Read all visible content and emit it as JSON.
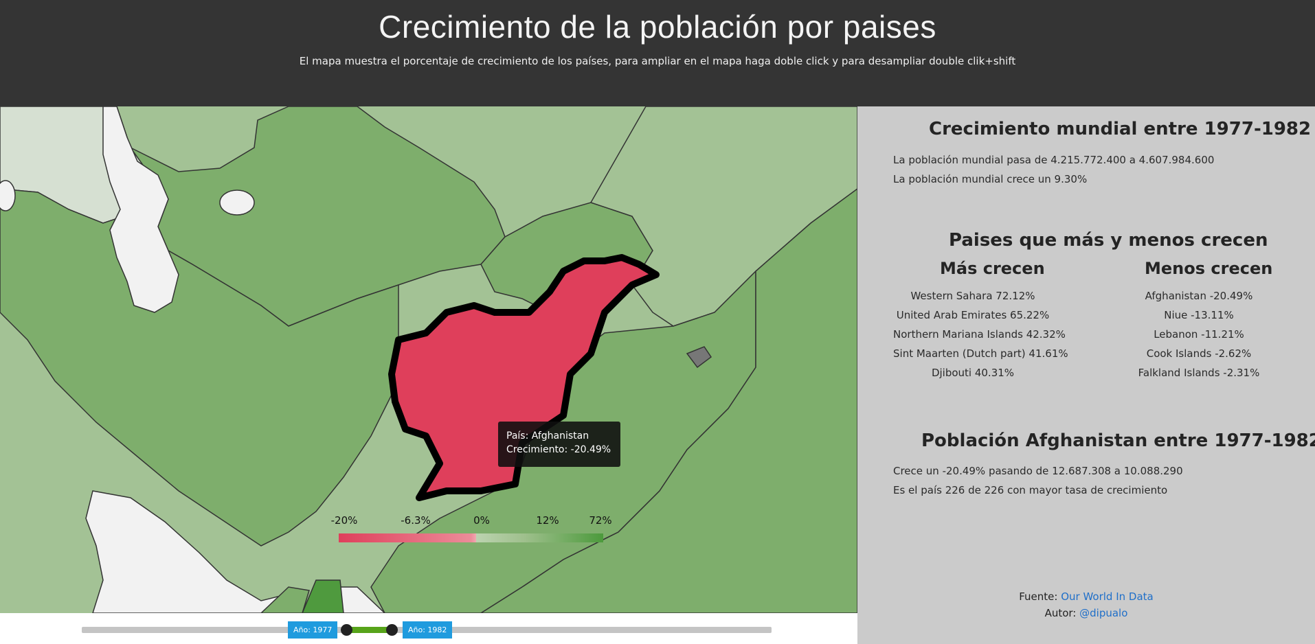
{
  "header": {
    "title": "Crecimiento de la población por paises",
    "subtitle": "El mapa muestra el porcentaje de crecimiento de los países, para ampliar en el mapa haga doble click y para desampliar double clik+shift"
  },
  "map": {
    "tooltip": {
      "country_line": "País: Afghanistan",
      "growth_line": "Crecimiento: -20.49%"
    },
    "legend": {
      "labels": [
        "-20%",
        "-6.3%",
        "0%",
        "12%",
        "72%"
      ],
      "colors": {
        "negative": "#df3f5b",
        "neutral": "#bcd3b0",
        "positive": "#4c9a3c"
      }
    },
    "colors": {
      "ocean": "#f2f2f2",
      "highlight": "#df3f5b",
      "border": "#333333"
    }
  },
  "slider": {
    "start_label": "Año: 1977",
    "end_label": "Año: 1982",
    "accent": "#1f9bde",
    "range_color": "#57a41a"
  },
  "panel": {
    "world": {
      "title": "Crecimiento mundial entre 1977-1982",
      "line1": "La población mundial pasa de 4.215.772.400 a 4.607.984.600",
      "line2": "La población mundial crece un 9.30%"
    },
    "ranking": {
      "title": "Paises que más y menos crecen",
      "most_title": "Más crecen",
      "least_title": "Menos crecen",
      "most": [
        "Western Sahara 72.12%",
        "United Arab Emirates 65.22%",
        "Northern Mariana Islands 42.32%",
        "Sint Maarten (Dutch part) 41.61%",
        "Djibouti 40.31%"
      ],
      "least": [
        "Afghanistan -20.49%",
        "Niue -13.11%",
        "Lebanon -11.21%",
        "Cook Islands -2.62%",
        "Falkland Islands -2.31%"
      ]
    },
    "country": {
      "title": "Población Afghanistan entre 1977-1982",
      "line1": "Crece un -20.49% pasando de 12.687.308 a 10.088.290",
      "line2": "Es el país 226 de 226 con mayor tasa de crecimiento"
    },
    "footer": {
      "source_prefix": "Fuente:",
      "source_link": "Our World In Data",
      "author_prefix": "Autor:",
      "author_link": "@dipualo"
    }
  }
}
